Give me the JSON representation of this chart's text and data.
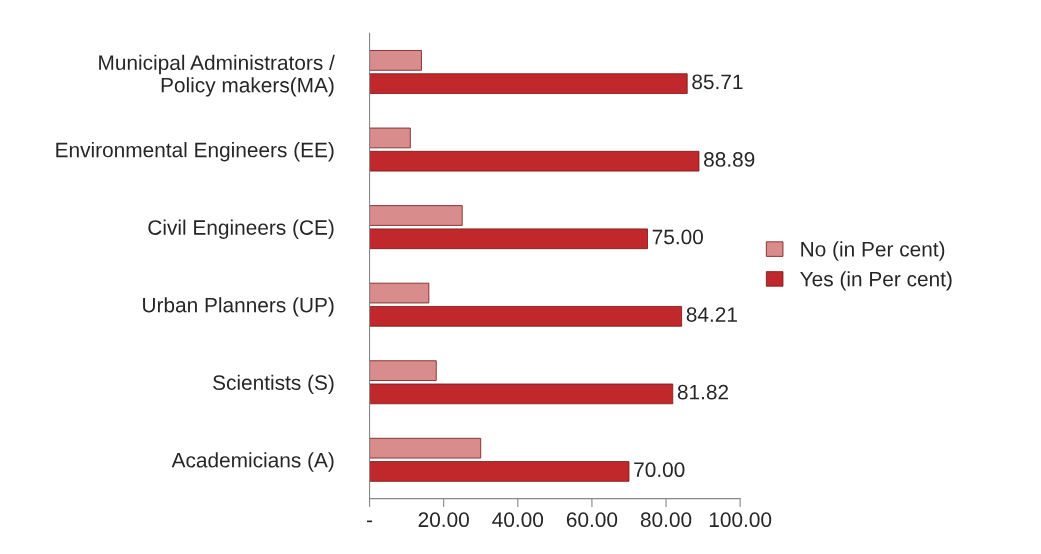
{
  "chart_data": {
    "type": "bar",
    "orientation": "horizontal",
    "categories": [
      "Municipal Administrators /\nPolicy makers(MA)",
      "Environmental Engineers (EE)",
      "Civil Engineers (CE)",
      "Urban Planners (UP)",
      "Scientists (S)",
      "Academicians (A)"
    ],
    "series": [
      {
        "name": "No (in Per cent)",
        "color": "#d98c8c",
        "values": [
          14,
          11,
          25,
          16,
          18,
          30
        ]
      },
      {
        "name": "Yes (in Per cent)",
        "color": "#c0282b",
        "values": [
          85.71,
          88.89,
          75.0,
          84.21,
          81.82,
          70.0
        ],
        "value_labels": [
          "85.71",
          "88.89",
          "75.00",
          "84.21",
          "81.82",
          "70.00"
        ]
      }
    ],
    "xlim": [
      0,
      100
    ],
    "xticks": [
      {
        "value": 0,
        "label": "-"
      },
      {
        "value": 20,
        "label": "20.00"
      },
      {
        "value": 40,
        "label": "40.00"
      },
      {
        "value": 60,
        "label": "60.00"
      },
      {
        "value": 80,
        "label": "80.00"
      },
      {
        "value": 100,
        "label": "100.00"
      }
    ],
    "grid": false,
    "legend": "right"
  }
}
